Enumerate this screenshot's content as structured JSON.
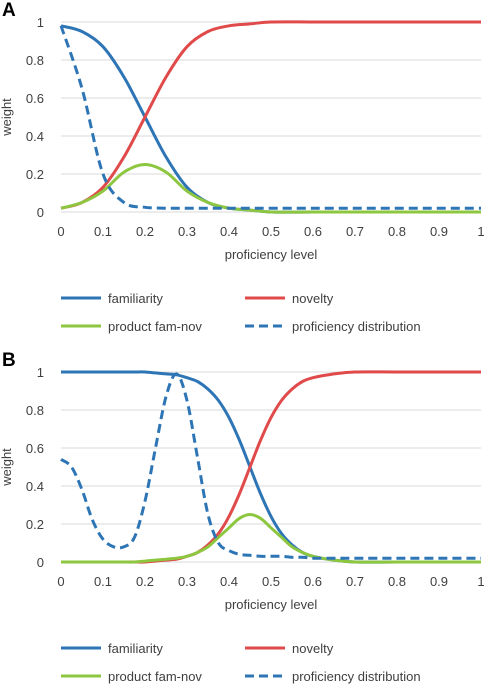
{
  "chart_data": [
    {
      "panel_label": "A",
      "type": "line",
      "xlabel": "proficiency level",
      "ylabel": "weight",
      "xlim": [
        0,
        1
      ],
      "ylim": [
        0,
        1
      ],
      "x_ticks": [
        "0",
        "0.1",
        "0.2",
        "0.3",
        "0.4",
        "0.5",
        "0.6",
        "0.7",
        "0.8",
        "0.9",
        "1"
      ],
      "y_ticks": [
        "0",
        "0.2",
        "0.4",
        "0.6",
        "0.8",
        "1"
      ],
      "grid": "horizontal",
      "legend_position": "bottom",
      "x": [
        0,
        0.05,
        0.1,
        0.15,
        0.2,
        0.25,
        0.3,
        0.35,
        0.4,
        0.45,
        0.5,
        0.6,
        0.7,
        0.8,
        0.9,
        1
      ],
      "series": [
        {
          "name": "familiarity",
          "color": "#2e75b6",
          "style": "solid",
          "values": [
            0.98,
            0.95,
            0.87,
            0.71,
            0.5,
            0.29,
            0.13,
            0.05,
            0.02,
            0.01,
            0.0,
            0.0,
            0.0,
            0.0,
            0.0,
            0.0
          ]
        },
        {
          "name": "novelty",
          "color": "#e04a4a",
          "style": "solid",
          "values": [
            0.02,
            0.05,
            0.13,
            0.29,
            0.5,
            0.71,
            0.87,
            0.95,
            0.98,
            0.99,
            1.0,
            1.0,
            1.0,
            1.0,
            1.0,
            1.0
          ]
        },
        {
          "name": "product fam-nov",
          "color": "#8dc63f",
          "style": "solid",
          "values": [
            0.02,
            0.05,
            0.11,
            0.21,
            0.25,
            0.21,
            0.11,
            0.05,
            0.02,
            0.01,
            0.0,
            0.0,
            0.0,
            0.0,
            0.0,
            0.0
          ]
        },
        {
          "name": "proficiency distribution",
          "color": "#2e75b6",
          "style": "dashed",
          "values": [
            0.98,
            0.65,
            0.2,
            0.05,
            0.025,
            0.02,
            0.02,
            0.02,
            0.02,
            0.02,
            0.02,
            0.02,
            0.02,
            0.02,
            0.02,
            0.02
          ]
        }
      ]
    },
    {
      "panel_label": "B",
      "type": "line",
      "xlabel": "proficiency level",
      "ylabel": "weight",
      "xlim": [
        0,
        1
      ],
      "ylim": [
        0,
        1
      ],
      "x_ticks": [
        "0",
        "0.1",
        "0.2",
        "0.3",
        "0.4",
        "0.5",
        "0.6",
        "0.7",
        "0.8",
        "0.9",
        "1"
      ],
      "y_ticks": [
        "0",
        "0.2",
        "0.4",
        "0.6",
        "0.8",
        "1"
      ],
      "grid": "horizontal",
      "legend_position": "bottom",
      "x": [
        0,
        0.025,
        0.05,
        0.075,
        0.1,
        0.125,
        0.15,
        0.175,
        0.2,
        0.225,
        0.25,
        0.275,
        0.3,
        0.325,
        0.35,
        0.375,
        0.4,
        0.425,
        0.45,
        0.475,
        0.5,
        0.525,
        0.55,
        0.575,
        0.6,
        0.65,
        0.7,
        0.8,
        0.9,
        1
      ],
      "series": [
        {
          "name": "familiarity",
          "color": "#2e75b6",
          "style": "solid",
          "values": [
            1.0,
            1.0,
            1.0,
            1.0,
            1.0,
            1.0,
            1.0,
            1.0,
            1.0,
            0.995,
            0.99,
            0.985,
            0.97,
            0.95,
            0.91,
            0.85,
            0.76,
            0.64,
            0.5,
            0.36,
            0.24,
            0.15,
            0.09,
            0.05,
            0.03,
            0.01,
            0.0,
            0.0,
            0.0,
            0.0
          ]
        },
        {
          "name": "novelty",
          "color": "#e04a4a",
          "style": "solid",
          "values": [
            0.0,
            0.0,
            0.0,
            0.0,
            0.0,
            0.0,
            0.0,
            0.0,
            0.0,
            0.005,
            0.01,
            0.015,
            0.03,
            0.05,
            0.09,
            0.15,
            0.24,
            0.36,
            0.5,
            0.64,
            0.76,
            0.85,
            0.91,
            0.95,
            0.97,
            0.99,
            1.0,
            1.0,
            1.0,
            1.0
          ]
        },
        {
          "name": "product fam-nov",
          "color": "#8dc63f",
          "style": "solid",
          "values": [
            0.0,
            0.0,
            0.0,
            0.0,
            0.0,
            0.0,
            0.0,
            0.0,
            0.005,
            0.01,
            0.015,
            0.02,
            0.03,
            0.05,
            0.08,
            0.13,
            0.18,
            0.23,
            0.25,
            0.23,
            0.18,
            0.13,
            0.08,
            0.05,
            0.03,
            0.01,
            0.0,
            0.0,
            0.0,
            0.0
          ]
        },
        {
          "name": "proficiency distribution",
          "color": "#2e75b6",
          "style": "dashed",
          "values": [
            0.54,
            0.5,
            0.38,
            0.22,
            0.12,
            0.08,
            0.08,
            0.13,
            0.32,
            0.6,
            0.87,
            0.99,
            0.85,
            0.55,
            0.25,
            0.1,
            0.06,
            0.04,
            0.035,
            0.03,
            0.03,
            0.03,
            0.025,
            0.025,
            0.02,
            0.02,
            0.02,
            0.02,
            0.02,
            0.02
          ]
        }
      ]
    }
  ]
}
